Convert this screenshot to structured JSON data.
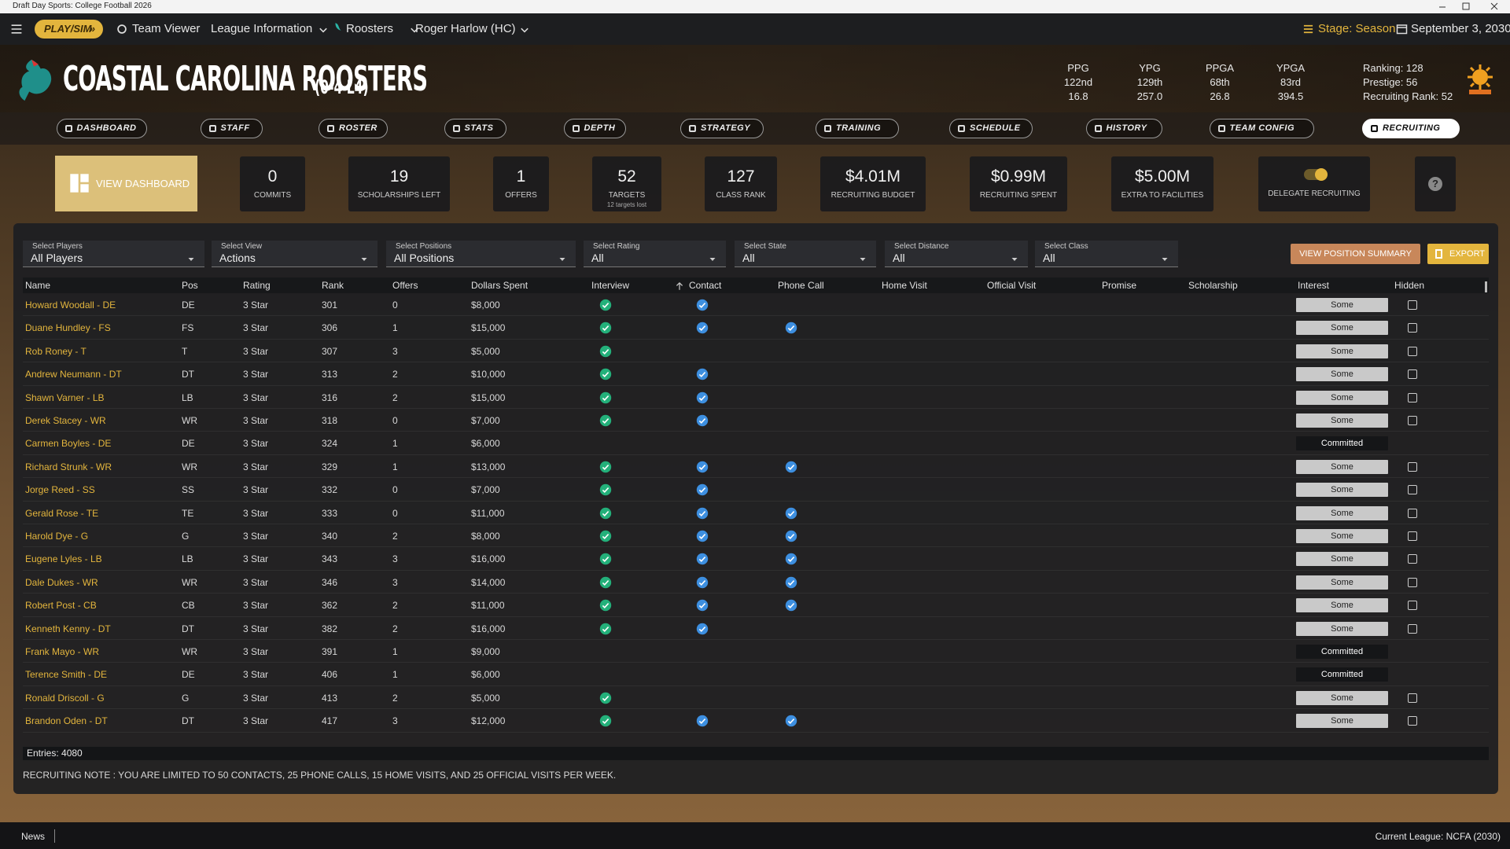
{
  "window_title": "Draft Day Sports: College Football 2026",
  "nav": {
    "play_sim": "PLAY/SIM",
    "items": [
      "Team Viewer",
      "League Information",
      "Roosters",
      "Roger Harlow (HC)"
    ],
    "stage": "Stage: Season",
    "date": "September 3, 2030"
  },
  "team": {
    "name": "COASTAL CAROLINA ROOSTERS",
    "record": "(0-4 L4)"
  },
  "team_stats": [
    {
      "label": "PPG",
      "rank": "122nd",
      "value": "16.8"
    },
    {
      "label": "YPG",
      "rank": "129th",
      "value": "257.0"
    },
    {
      "label": "PPGA",
      "rank": "68th",
      "value": "26.8"
    },
    {
      "label": "YPGA",
      "rank": "83rd",
      "value": "394.5"
    }
  ],
  "team_info": [
    "Ranking: 128",
    "Prestige: 56",
    "Recruiting Rank: 52"
  ],
  "tabs": [
    "DASHBOARD",
    "STAFF",
    "ROSTER",
    "STATS",
    "DEPTH",
    "STRATEGY",
    "TRAINING",
    "SCHEDULE",
    "HISTORY",
    "TEAM CONFIG",
    "RECRUITING"
  ],
  "active_tab": "RECRUITING",
  "summary": {
    "view_dashboard": "VIEW DASHBOARD",
    "cards": [
      {
        "value": "0",
        "label": "COMMITS"
      },
      {
        "value": "19",
        "label": "SCHOLARSHIPS LEFT"
      },
      {
        "value": "1",
        "label": "OFFERS"
      },
      {
        "value": "52",
        "label": "TARGETS",
        "sub": "12 targets lost"
      },
      {
        "value": "127",
        "label": "CLASS RANK"
      },
      {
        "value": "$4.01M",
        "label": "RECRUITING BUDGET"
      },
      {
        "value": "$0.99M",
        "label": "RECRUITING SPENT"
      },
      {
        "value": "$5.00M",
        "label": "EXTRA TO FACILITIES"
      }
    ],
    "delegate": "DELEGATE RECRUITING",
    "help": "?"
  },
  "filters": [
    {
      "label": "Select Players",
      "value": "All Players"
    },
    {
      "label": "Select View",
      "value": "Actions"
    },
    {
      "label": "Select Positions",
      "value": "All Positions"
    },
    {
      "label": "Select Rating",
      "value": "All"
    },
    {
      "label": "Select State",
      "value": "All"
    },
    {
      "label": "Select Distance",
      "value": "All"
    },
    {
      "label": "Select Class",
      "value": "All"
    }
  ],
  "buttons": [
    "VIEW POSITION SUMMARY",
    "EXPORT"
  ],
  "table": {
    "columns": [
      "Name",
      "Pos",
      "Rating",
      "Rank",
      "Offers",
      "Dollars Spent",
      "Interview",
      "Contact",
      "Phone Call",
      "Home Visit",
      "Official Visit",
      "Promise",
      "Scholarship",
      "Interest",
      "Hidden"
    ],
    "rows": [
      {
        "name": "Howard Woodall - DE",
        "pos": "DE",
        "rating": "3 Star",
        "rank": "301",
        "offers": "0",
        "dollars": "$8,000",
        "interview": true,
        "contact": true,
        "phone": false,
        "interest": "Some",
        "hidden": false
      },
      {
        "name": "Duane Hundley - FS",
        "pos": "FS",
        "rating": "3 Star",
        "rank": "306",
        "offers": "1",
        "dollars": "$15,000",
        "interview": true,
        "contact": true,
        "phone": true,
        "interest": "Some",
        "hidden": false
      },
      {
        "name": "Rob Roney - T",
        "pos": "T",
        "rating": "3 Star",
        "rank": "307",
        "offers": "3",
        "dollars": "$5,000",
        "interview": true,
        "contact": false,
        "phone": false,
        "interest": "Some",
        "hidden": false
      },
      {
        "name": "Andrew Neumann - DT",
        "pos": "DT",
        "rating": "3 Star",
        "rank": "313",
        "offers": "2",
        "dollars": "$10,000",
        "interview": true,
        "contact": true,
        "phone": false,
        "interest": "Some",
        "hidden": false
      },
      {
        "name": "Shawn Varner - LB",
        "pos": "LB",
        "rating": "3 Star",
        "rank": "316",
        "offers": "2",
        "dollars": "$15,000",
        "interview": true,
        "contact": true,
        "phone": false,
        "interest": "Some",
        "hidden": false
      },
      {
        "name": "Derek Stacey - WR",
        "pos": "WR",
        "rating": "3 Star",
        "rank": "318",
        "offers": "0",
        "dollars": "$7,000",
        "interview": true,
        "contact": true,
        "phone": false,
        "interest": "Some",
        "hidden": false
      },
      {
        "name": "Carmen Boyles - DE",
        "pos": "DE",
        "rating": "3 Star",
        "rank": "324",
        "offers": "1",
        "dollars": "$6,000",
        "interview": false,
        "contact": false,
        "phone": false,
        "interest": "Committed",
        "hidden": null
      },
      {
        "name": "Richard Strunk - WR",
        "pos": "WR",
        "rating": "3 Star",
        "rank": "329",
        "offers": "1",
        "dollars": "$13,000",
        "interview": true,
        "contact": true,
        "phone": true,
        "interest": "Some",
        "hidden": false
      },
      {
        "name": "Jorge Reed - SS",
        "pos": "SS",
        "rating": "3 Star",
        "rank": "332",
        "offers": "0",
        "dollars": "$7,000",
        "interview": true,
        "contact": true,
        "phone": false,
        "interest": "Some",
        "hidden": false
      },
      {
        "name": "Gerald Rose - TE",
        "pos": "TE",
        "rating": "3 Star",
        "rank": "333",
        "offers": "0",
        "dollars": "$11,000",
        "interview": true,
        "contact": true,
        "phone": true,
        "interest": "Some",
        "hidden": false
      },
      {
        "name": "Harold Dye - G",
        "pos": "G",
        "rating": "3 Star",
        "rank": "340",
        "offers": "2",
        "dollars": "$8,000",
        "interview": true,
        "contact": true,
        "phone": true,
        "interest": "Some",
        "hidden": false
      },
      {
        "name": "Eugene Lyles - LB",
        "pos": "LB",
        "rating": "3 Star",
        "rank": "343",
        "offers": "3",
        "dollars": "$16,000",
        "interview": true,
        "contact": true,
        "phone": true,
        "interest": "Some",
        "hidden": false
      },
      {
        "name": "Dale Dukes - WR",
        "pos": "WR",
        "rating": "3 Star",
        "rank": "346",
        "offers": "3",
        "dollars": "$14,000",
        "interview": true,
        "contact": true,
        "phone": true,
        "interest": "Some",
        "hidden": false
      },
      {
        "name": "Robert Post - CB",
        "pos": "CB",
        "rating": "3 Star",
        "rank": "362",
        "offers": "2",
        "dollars": "$11,000",
        "interview": true,
        "contact": true,
        "phone": true,
        "interest": "Some",
        "hidden": false
      },
      {
        "name": "Kenneth Kenny - DT",
        "pos": "DT",
        "rating": "3 Star",
        "rank": "382",
        "offers": "2",
        "dollars": "$16,000",
        "interview": true,
        "contact": true,
        "phone": false,
        "interest": "Some",
        "hidden": false
      },
      {
        "name": "Frank Mayo - WR",
        "pos": "WR",
        "rating": "3 Star",
        "rank": "391",
        "offers": "1",
        "dollars": "$9,000",
        "interview": false,
        "contact": false,
        "phone": false,
        "interest": "Committed",
        "hidden": null
      },
      {
        "name": "Terence Smith - DE",
        "pos": "DE",
        "rating": "3 Star",
        "rank": "406",
        "offers": "1",
        "dollars": "$6,000",
        "interview": false,
        "contact": false,
        "phone": false,
        "interest": "Committed",
        "hidden": null
      },
      {
        "name": "Ronald Driscoll - G",
        "pos": "G",
        "rating": "3 Star",
        "rank": "413",
        "offers": "2",
        "dollars": "$5,000",
        "interview": true,
        "contact": false,
        "phone": false,
        "interest": "Some",
        "hidden": false
      },
      {
        "name": "Brandon Oden - DT",
        "pos": "DT",
        "rating": "3 Star",
        "rank": "417",
        "offers": "3",
        "dollars": "$12,000",
        "interview": true,
        "contact": true,
        "phone": true,
        "interest": "Some",
        "hidden": false
      }
    ]
  },
  "entries": "Entries: 4080",
  "note": "RECRUITING NOTE : YOU ARE LIMITED TO 50 CONTACTS, 25 PHONE CALLS, 15 HOME VISITS, AND 25 OFFICIAL VISITS PER WEEK.",
  "footer": {
    "news": "News",
    "league": "Current League: NCFA (2030)"
  }
}
